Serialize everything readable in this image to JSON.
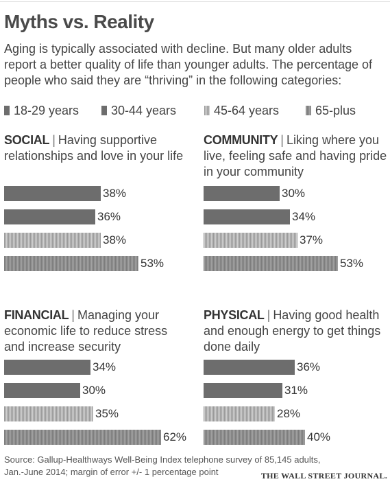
{
  "title": "Myths vs. Reality",
  "subtitle": "Aging is typically associated with decline. But many older adults report a better quality of life than younger adults. The percentage of people who said they are “thriving” in the following categories:",
  "legend": [
    "18-29 years",
    "30-44 years",
    "45-64 years",
    "65-plus"
  ],
  "colors": {
    "s0": "#6d6d6d",
    "s1": "#6d6d6d",
    "s2": "#b5b5b5",
    "s3": "#8f8f8f"
  },
  "chart_data": [
    {
      "type": "bar",
      "category": "SOCIAL",
      "description": "Having supportive relationships and love in your life",
      "series_names": [
        "18-29 years",
        "30-44 years",
        "45-64 years",
        "65-plus"
      ],
      "values": [
        38,
        36,
        38,
        53
      ],
      "labels": [
        "38%",
        "36%",
        "38%",
        "53%"
      ],
      "unit": "%"
    },
    {
      "type": "bar",
      "category": "COMMUNITY",
      "description": "Liking where you live, feeling safe and having pride in your community",
      "series_names": [
        "18-29 years",
        "30-44 years",
        "45-64 years",
        "65-plus"
      ],
      "values": [
        30,
        34,
        37,
        53
      ],
      "labels": [
        "30%",
        "34%",
        "37%",
        "53%"
      ],
      "unit": "%"
    },
    {
      "type": "bar",
      "category": "FINANCIAL",
      "description": "Managing your economic life to reduce stress and increase security",
      "series_names": [
        "18-29 years",
        "30-44 years",
        "45-64 years",
        "65-plus"
      ],
      "values": [
        34,
        30,
        35,
        62
      ],
      "labels": [
        "34%",
        "30%",
        "35%",
        "62%"
      ],
      "unit": "%"
    },
    {
      "type": "bar",
      "category": "PHYSICAL",
      "description": "Having good health and enough energy to get things done daily",
      "series_names": [
        "18-29 years",
        "30-44 years",
        "45-64 years",
        "65-plus"
      ],
      "values": [
        36,
        31,
        28,
        40
      ],
      "labels": [
        "36%",
        "31%",
        "28%",
        "40%"
      ],
      "unit": "%"
    }
  ],
  "source": "Source: Gallup-Healthways Well-Being Index telephone survey of 85,145 adults, Jan.-June 2014; margin of error +/- 1 percentage point",
  "brand": "THE WALL STREET JOURNAL."
}
